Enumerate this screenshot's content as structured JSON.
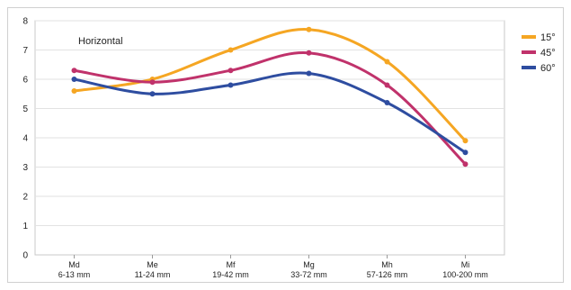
{
  "chart_data": {
    "type": "line",
    "title": "Horizontal",
    "xlabel": "",
    "ylabel": "",
    "categories": [
      [
        "Md",
        "6-13 mm"
      ],
      [
        "Me",
        "11-24 mm"
      ],
      [
        "Mf",
        "19-42 mm"
      ],
      [
        "Mg",
        "33-72 mm"
      ],
      [
        "Mh",
        "57-126 mm"
      ],
      [
        "Mi",
        "100-200 mm"
      ]
    ],
    "ylim": [
      0,
      8
    ],
    "yticks": [
      0,
      1,
      2,
      3,
      4,
      5,
      6,
      7,
      8
    ],
    "grid": true,
    "legend_position": "right",
    "series": [
      {
        "name": "15°",
        "color": "#f5a623",
        "values": [
          5.6,
          6.0,
          7.0,
          7.7,
          6.6,
          3.9
        ]
      },
      {
        "name": "45°",
        "color": "#c0326b",
        "values": [
          6.3,
          5.9,
          6.3,
          6.9,
          5.8,
          3.1
        ]
      },
      {
        "name": "60°",
        "color": "#2e4da0",
        "values": [
          6.0,
          5.5,
          5.8,
          6.2,
          5.2,
          3.5
        ]
      }
    ]
  }
}
